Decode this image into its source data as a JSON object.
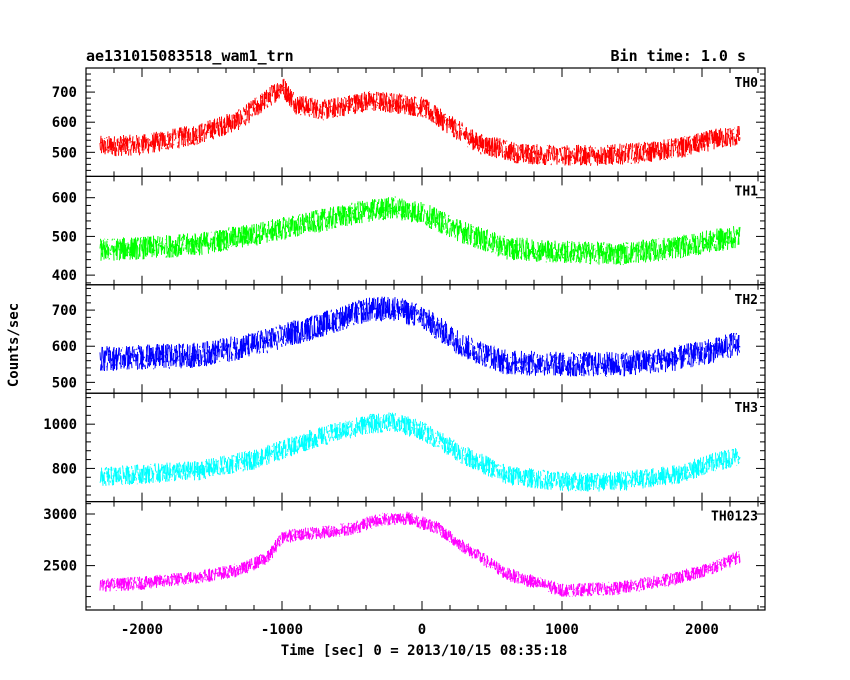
{
  "header": {
    "title": "ae131015083518_wam1_trn",
    "bin_time": "Bin time: 1.0 s"
  },
  "chart_data": {
    "type": "line",
    "title": "ae131015083518_wam1_trn",
    "subtitle": "Bin time: 1.0 s",
    "xlabel": "Time [sec] 0 = 2013/10/15 08:35:18",
    "ylabel": "Counts/sec",
    "xlim": [
      -2400,
      2450
    ],
    "x_ticks": [
      -2000,
      -1000,
      0,
      1000,
      2000
    ],
    "x_range": [
      -2300,
      2270
    ],
    "grid": false,
    "panels": [
      {
        "name": "TH0",
        "color": "#ff0000",
        "ylim": [
          420,
          780
        ],
        "y_ticks": [
          500,
          600,
          700
        ],
        "noise": 35,
        "x": [
          -2300,
          -2000,
          -1600,
          -1300,
          -1100,
          -1000,
          -900,
          -700,
          -400,
          -200,
          0,
          200,
          400,
          700,
          1000,
          1300,
          1600,
          1900,
          2100,
          2270
        ],
        "y": [
          520,
          525,
          560,
          610,
          680,
          720,
          660,
          640,
          670,
          665,
          650,
          590,
          530,
          495,
          490,
          490,
          500,
          520,
          545,
          555
        ]
      },
      {
        "name": "TH1",
        "color": "#00ff00",
        "ylim": [
          375,
          655
        ],
        "y_ticks": [
          400,
          500,
          600
        ],
        "noise": 30,
        "x": [
          -2300,
          -2000,
          -1600,
          -1200,
          -800,
          -400,
          -200,
          0,
          300,
          600,
          1000,
          1400,
          1800,
          2100,
          2270
        ],
        "y": [
          465,
          470,
          480,
          505,
          535,
          565,
          575,
          560,
          510,
          470,
          460,
          455,
          470,
          490,
          500
        ]
      },
      {
        "name": "TH2",
        "color": "#0000ff",
        "ylim": [
          470,
          770
        ],
        "y_ticks": [
          500,
          600,
          700
        ],
        "noise": 35,
        "x": [
          -2300,
          -2000,
          -1600,
          -1200,
          -800,
          -400,
          -200,
          0,
          300,
          600,
          1000,
          1400,
          1800,
          2100,
          2270
        ],
        "y": [
          565,
          570,
          575,
          605,
          650,
          700,
          705,
          680,
          600,
          555,
          550,
          550,
          565,
          590,
          610
        ]
      },
      {
        "name": "TH3",
        "color": "#00ffff",
        "ylim": [
          650,
          1140
        ],
        "y_ticks": [
          800,
          1000
        ],
        "noise": 45,
        "x": [
          -2300,
          -2000,
          -1600,
          -1200,
          -800,
          -400,
          -200,
          0,
          300,
          600,
          1000,
          1400,
          1800,
          2100,
          2270
        ],
        "y": [
          760,
          775,
          790,
          840,
          930,
          1000,
          1010,
          970,
          860,
          770,
          740,
          740,
          770,
          830,
          860
        ]
      },
      {
        "name": "TH0123",
        "color": "#ff00ff",
        "ylim": [
          2070,
          3120
        ],
        "y_ticks": [
          2500,
          3000
        ],
        "noise": 65,
        "x": [
          -2300,
          -2000,
          -1600,
          -1300,
          -1100,
          -1000,
          -800,
          -500,
          -300,
          -100,
          100,
          300,
          600,
          1000,
          1400,
          1800,
          2100,
          2270
        ],
        "y": [
          2310,
          2330,
          2390,
          2460,
          2580,
          2780,
          2810,
          2860,
          2950,
          2960,
          2870,
          2680,
          2420,
          2260,
          2280,
          2370,
          2490,
          2590
        ]
      }
    ]
  }
}
